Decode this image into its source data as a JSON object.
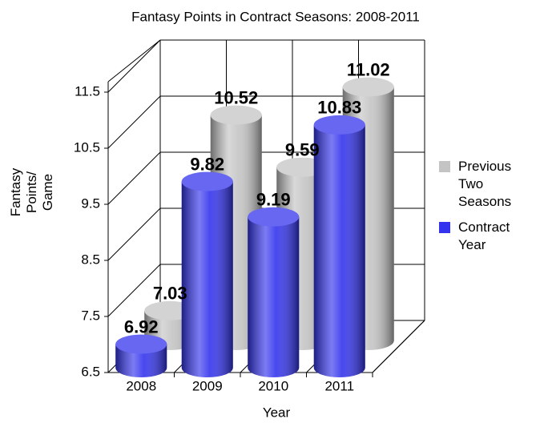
{
  "chart_data": {
    "type": "bar3d",
    "title": "Fantasy Points in Contract Seasons: 2008-2011",
    "xlabel": "Year",
    "ylabel": "Fantasy Points/ Game",
    "categories": [
      "2008",
      "2009",
      "2010",
      "2011"
    ],
    "series": [
      {
        "name": "Previous Two Seasons",
        "color": "#c4c4c4",
        "values": [
          7.03,
          10.52,
          9.59,
          11.02
        ]
      },
      {
        "name": "Contract Year",
        "color": "#3434ee",
        "values": [
          6.92,
          9.82,
          9.19,
          10.83
        ]
      }
    ],
    "ylim": [
      6.5,
      11.5
    ],
    "yticks": [
      6.5,
      7.5,
      8.5,
      9.5,
      10.5,
      11.5
    ],
    "grid": true,
    "legend": "right"
  }
}
